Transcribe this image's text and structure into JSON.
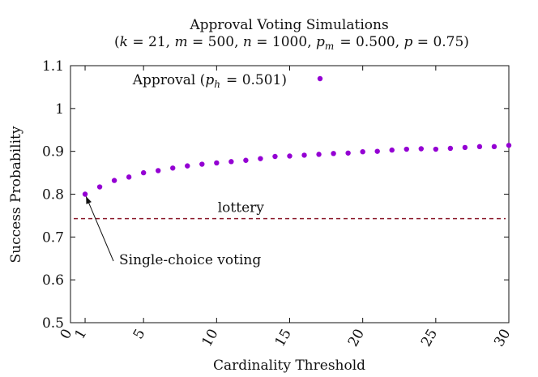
{
  "chart_data": {
    "type": "scatter",
    "title_line1": "Approval Voting Simulations",
    "title_line2": "(k = 21, m = 500, n = 1000, p_m = 0.500, p = 0.75)",
    "xlabel": "Cardinality Threshold",
    "ylabel": "Success Probability",
    "xlim": [
      0,
      30
    ],
    "ylim": [
      0.5,
      1.1
    ],
    "x_ticks": [
      0,
      1,
      5,
      10,
      15,
      20,
      25,
      30
    ],
    "x_tick_labels": [
      "0",
      "1",
      "5",
      "10",
      "15",
      "20",
      "25",
      "30"
    ],
    "y_ticks": [
      0.5,
      0.6,
      0.7,
      0.8,
      0.9,
      1.0,
      1.1
    ],
    "y_tick_labels": [
      "0.5",
      "0.6",
      "0.7",
      "0.8",
      "0.9",
      "1",
      "1.1"
    ],
    "grid": false,
    "legend_position": "top-left",
    "series": [
      {
        "name": "Approval (p_h = 0.501)",
        "color": "#9400d3",
        "x": [
          1,
          2,
          3,
          4,
          5,
          6,
          7,
          8,
          9,
          10,
          11,
          12,
          13,
          14,
          15,
          16,
          17,
          18,
          19,
          20,
          21,
          22,
          23,
          24,
          25,
          26,
          27,
          28,
          29,
          30
        ],
        "y": [
          0.8,
          0.817,
          0.832,
          0.84,
          0.85,
          0.855,
          0.861,
          0.866,
          0.87,
          0.873,
          0.876,
          0.879,
          0.883,
          0.888,
          0.889,
          0.891,
          0.893,
          0.895,
          0.896,
          0.899,
          0.9,
          0.903,
          0.905,
          0.906,
          0.905,
          0.907,
          0.909,
          0.911,
          0.911,
          0.914
        ]
      }
    ],
    "reference_line": {
      "label": "lottery",
      "y": 0.743,
      "color": "#8b1a2b",
      "style": "dashed"
    },
    "annotation": {
      "text": "Single-choice voting",
      "target_x": 1,
      "target_y": 0.8
    }
  }
}
